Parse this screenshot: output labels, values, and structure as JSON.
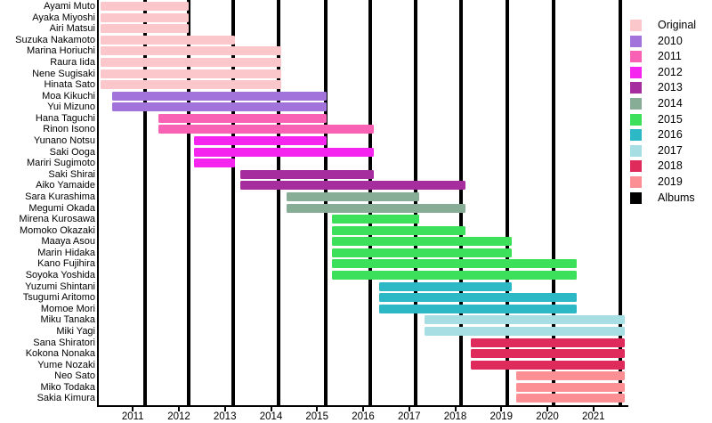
{
  "chart_data": {
    "type": "bar",
    "subtype": "gantt-member-timeline",
    "title": "",
    "xlabel": "",
    "ylabel": "",
    "grid": "off",
    "legend_position": "top-right",
    "x_axis": {
      "range": [
        2010.3,
        2021.7
      ],
      "ticks": [
        "2011",
        "2012",
        "2013",
        "2014",
        "2015",
        "2016",
        "2017",
        "2018",
        "2019",
        "2020",
        "2021"
      ]
    },
    "colors": {
      "original": "#FBC7CB",
      "2010": "#A274DB",
      "2011": "#F961B4",
      "2012": "#F525EF",
      "2013": "#A52D9E",
      "2014": "#87AD96",
      "2015": "#3CE05A",
      "2016": "#2DB8C5",
      "2017": "#A7DEE3",
      "2018": "#DE2B5C",
      "2019": "#FB8F94",
      "albums": "#000000"
    },
    "legend": [
      {
        "key": "original",
        "label": "Original"
      },
      {
        "key": "2010",
        "label": "2010"
      },
      {
        "key": "2011",
        "label": "2011"
      },
      {
        "key": "2012",
        "label": "2012"
      },
      {
        "key": "2013",
        "label": "2013"
      },
      {
        "key": "2014",
        "label": "2014"
      },
      {
        "key": "2015",
        "label": "2015"
      },
      {
        "key": "2016",
        "label": "2016"
      },
      {
        "key": "2017",
        "label": "2017"
      },
      {
        "key": "2018",
        "label": "2018"
      },
      {
        "key": "2019",
        "label": "2019"
      },
      {
        "key": "albums",
        "label": "Albums"
      }
    ],
    "album_lines": [
      2011.27,
      2012.22,
      2013.18,
      2014.17,
      2015.19,
      2016.15,
      2017.14,
      2018.12,
      2019.13,
      2020.13,
      2021.58
    ],
    "members": [
      {
        "name": "Ayami Muto",
        "cohort": "original",
        "start": 2010.3,
        "end": 2012.21
      },
      {
        "name": "Ayaka Miyoshi",
        "cohort": "original",
        "start": 2010.3,
        "end": 2012.21
      },
      {
        "name": "Airi Matsui",
        "cohort": "original",
        "start": 2010.3,
        "end": 2012.21
      },
      {
        "name": "Suzuka Nakamoto",
        "cohort": "original",
        "start": 2010.3,
        "end": 2013.21
      },
      {
        "name": "Marina Horiuchi",
        "cohort": "original",
        "start": 2010.3,
        "end": 2014.22
      },
      {
        "name": "Raura Iida",
        "cohort": "original",
        "start": 2010.3,
        "end": 2014.22
      },
      {
        "name": "Nene Sugisaki",
        "cohort": "original",
        "start": 2010.3,
        "end": 2014.22
      },
      {
        "name": "Hinata Sato",
        "cohort": "original",
        "start": 2010.3,
        "end": 2014.22
      },
      {
        "name": "Moa Kikuchi",
        "cohort": "2010",
        "start": 2010.55,
        "end": 2015.2
      },
      {
        "name": "Yui Mizuno",
        "cohort": "2010",
        "start": 2010.55,
        "end": 2015.2
      },
      {
        "name": "Hana Taguchi",
        "cohort": "2011",
        "start": 2011.55,
        "end": 2015.2
      },
      {
        "name": "Rinon Isono",
        "cohort": "2011",
        "start": 2011.55,
        "end": 2016.23
      },
      {
        "name": "Yunano Notsu",
        "cohort": "2012",
        "start": 2012.33,
        "end": 2015.2
      },
      {
        "name": "Saki Ooga",
        "cohort": "2012",
        "start": 2012.33,
        "end": 2016.23
      },
      {
        "name": "Mariri Sugimoto",
        "cohort": "2012",
        "start": 2012.33,
        "end": 2013.21
      },
      {
        "name": "Saki Shirai",
        "cohort": "2013",
        "start": 2013.33,
        "end": 2016.23
      },
      {
        "name": "Aiko Yamaide",
        "cohort": "2013",
        "start": 2013.33,
        "end": 2018.23
      },
      {
        "name": "Sara Kurashima",
        "cohort": "2014",
        "start": 2014.34,
        "end": 2017.22
      },
      {
        "name": "Megumi Okada",
        "cohort": "2014",
        "start": 2014.34,
        "end": 2018.23
      },
      {
        "name": "Mirena Kurosawa",
        "cohort": "2015",
        "start": 2015.33,
        "end": 2017.22
      },
      {
        "name": "Momoko Okazaki",
        "cohort": "2015",
        "start": 2015.33,
        "end": 2018.23
      },
      {
        "name": "Maaya Asou",
        "cohort": "2015",
        "start": 2015.33,
        "end": 2019.22
      },
      {
        "name": "Marin Hidaka",
        "cohort": "2015",
        "start": 2015.33,
        "end": 2019.22
      },
      {
        "name": "Kano Fujihira",
        "cohort": "2015",
        "start": 2015.33,
        "end": 2020.64
      },
      {
        "name": "Soyoka Yoshida",
        "cohort": "2015",
        "start": 2015.33,
        "end": 2020.64
      },
      {
        "name": "Yuzumi Shintani",
        "cohort": "2016",
        "start": 2016.34,
        "end": 2019.22
      },
      {
        "name": "Tsugumi Aritomo",
        "cohort": "2016",
        "start": 2016.34,
        "end": 2020.64
      },
      {
        "name": "Momoe Mori",
        "cohort": "2016",
        "start": 2016.34,
        "end": 2020.64
      },
      {
        "name": "Miku Tanaka",
        "cohort": "2017",
        "start": 2017.33,
        "end": 2021.69
      },
      {
        "name": "Miki Yagi",
        "cohort": "2017",
        "start": 2017.33,
        "end": 2021.69
      },
      {
        "name": "Sana Shiratori",
        "cohort": "2018",
        "start": 2018.33,
        "end": 2021.69
      },
      {
        "name": "Kokona Nonaka",
        "cohort": "2018",
        "start": 2018.33,
        "end": 2021.69
      },
      {
        "name": "Yume Nozaki",
        "cohort": "2018",
        "start": 2018.33,
        "end": 2021.69
      },
      {
        "name": "Neo Sato",
        "cohort": "2019",
        "start": 2019.33,
        "end": 2021.69
      },
      {
        "name": "Miko Todaka",
        "cohort": "2019",
        "start": 2019.33,
        "end": 2021.69
      },
      {
        "name": "Sakia Kimura",
        "cohort": "2019",
        "start": 2019.33,
        "end": 2021.69
      }
    ]
  }
}
